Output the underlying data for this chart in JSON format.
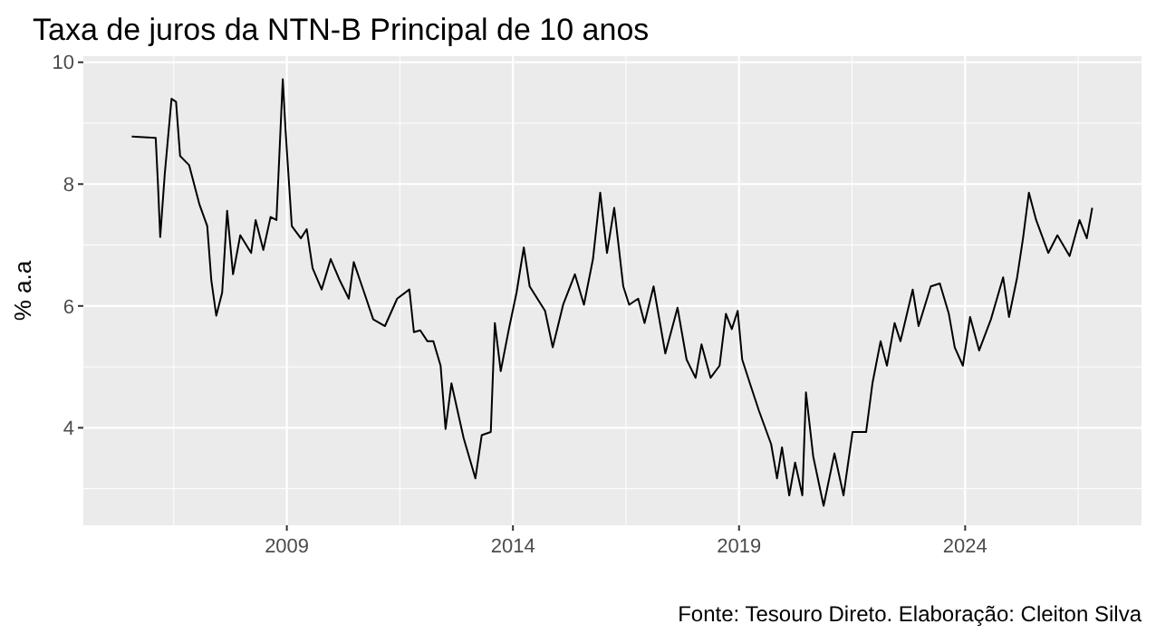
{
  "chart_data": {
    "type": "line",
    "title": "Taxa de juros da NTN-B Principal de 10 anos",
    "ylabel": "% a.a",
    "annotations": [
      "Fonte: Tesouro Direto. Elaboração: Cleiton Silva"
    ],
    "xlim": [
      2004.5,
      2027.9
    ],
    "xticks": [
      2009,
      2014,
      2019,
      2024
    ],
    "ylim": [
      2.4,
      10.1
    ],
    "yticks": [
      4,
      6,
      8,
      10
    ],
    "grid": true,
    "series": [
      {
        "color": "#000000",
        "x": [
          2005.57,
          2006.1,
          2006.15,
          2006.2,
          2006.3,
          2006.45,
          2006.55,
          2006.64,
          2006.84,
          2007.07,
          2007.24,
          2007.33,
          2007.44,
          2007.57,
          2007.68,
          2007.81,
          2007.97,
          2008.21,
          2008.31,
          2008.48,
          2008.64,
          2008.77,
          2008.91,
          2008.97,
          2009.11,
          2009.31,
          2009.44,
          2009.57,
          2009.77,
          2009.97,
          2010.17,
          2010.37,
          2010.48,
          2010.71,
          2010.91,
          2011.17,
          2011.44,
          2011.71,
          2011.81,
          2011.95,
          2012.11,
          2012.24,
          2012.4,
          2012.51,
          2012.64,
          2012.91,
          2013.17,
          2013.31,
          2013.51,
          2013.6,
          2013.73,
          2013.91,
          2014.08,
          2014.24,
          2014.37,
          2014.71,
          2014.88,
          2015.11,
          2015.37,
          2015.57,
          2015.77,
          2015.93,
          2016.08,
          2016.24,
          2016.44,
          2016.57,
          2016.77,
          2016.91,
          2017.11,
          2017.37,
          2017.64,
          2017.84,
          2018.04,
          2018.17,
          2018.37,
          2018.57,
          2018.71,
          2018.84,
          2018.97,
          2019.07,
          2019.24,
          2019.44,
          2019.71,
          2019.84,
          2019.95,
          2020.11,
          2020.24,
          2020.4,
          2020.48,
          2020.64,
          2020.87,
          2021.11,
          2021.31,
          2021.51,
          2021.81,
          2021.95,
          2022.13,
          2022.27,
          2022.44,
          2022.57,
          2022.84,
          2022.97,
          2023.24,
          2023.44,
          2023.64,
          2023.77,
          2023.95,
          2024.11,
          2024.31,
          2024.57,
          2024.84,
          2024.97,
          2025.15,
          2025.28,
          2025.41,
          2025.57,
          2025.84,
          2026.04,
          2026.31,
          2026.53,
          2026.69,
          2026.81
        ],
        "values": [
          8.78,
          8.76,
          8.0,
          7.13,
          8.16,
          9.4,
          9.35,
          8.46,
          8.31,
          7.66,
          7.31,
          6.42,
          5.84,
          6.22,
          7.56,
          6.52,
          7.16,
          6.87,
          7.41,
          6.92,
          7.46,
          7.41,
          9.72,
          8.9,
          7.31,
          7.11,
          7.26,
          6.62,
          6.27,
          6.77,
          6.42,
          6.12,
          6.72,
          6.22,
          5.78,
          5.67,
          6.12,
          6.27,
          5.57,
          5.6,
          5.42,
          5.42,
          5.02,
          3.98,
          4.73,
          3.83,
          3.17,
          3.88,
          3.93,
          5.72,
          4.93,
          5.62,
          6.22,
          6.96,
          6.32,
          5.92,
          5.32,
          6.02,
          6.52,
          6.02,
          6.77,
          7.86,
          6.87,
          7.61,
          6.32,
          6.02,
          6.12,
          5.72,
          6.32,
          5.22,
          5.97,
          5.12,
          4.82,
          5.37,
          4.82,
          5.02,
          5.87,
          5.62,
          5.92,
          5.12,
          4.73,
          4.28,
          3.73,
          3.17,
          3.68,
          2.89,
          3.43,
          2.89,
          4.58,
          3.53,
          2.72,
          3.58,
          2.89,
          3.93,
          3.93,
          4.73,
          5.42,
          5.02,
          5.72,
          5.42,
          6.27,
          5.67,
          6.32,
          6.37,
          5.87,
          5.32,
          5.02,
          5.82,
          5.27,
          5.78,
          6.47,
          5.82,
          6.47,
          7.11,
          7.86,
          7.41,
          6.87,
          7.16,
          6.82,
          7.41,
          7.11,
          7.61
        ]
      }
    ]
  }
}
